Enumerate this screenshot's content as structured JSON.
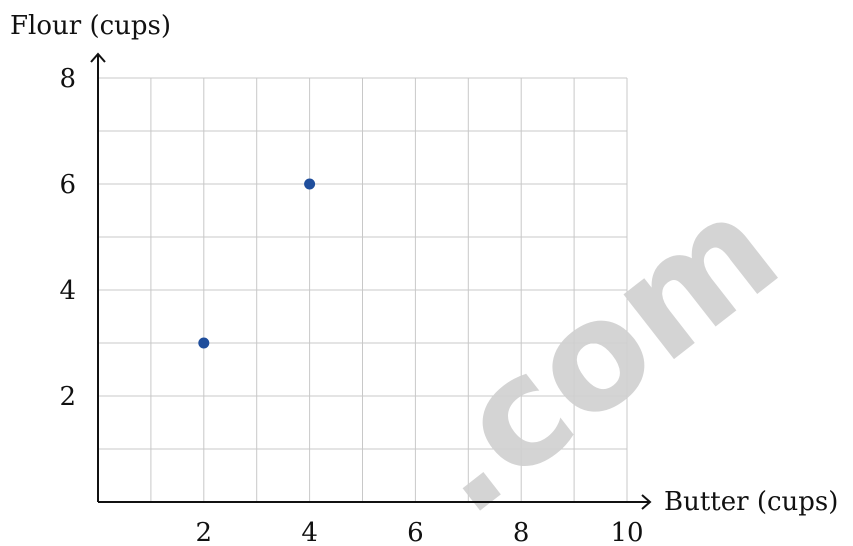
{
  "chart_data": {
    "type": "scatter",
    "xlabel": "Butter (cups)",
    "ylabel": "Flour (cups)",
    "xlim": [
      0,
      10
    ],
    "ylim": [
      0,
      8
    ],
    "x_ticks": [
      2,
      4,
      6,
      8,
      10
    ],
    "y_ticks": [
      2,
      4,
      6,
      8
    ],
    "grid": true,
    "series": [
      {
        "x": [
          2,
          4
        ],
        "y": [
          3,
          6
        ],
        "color": "#1f4e9c"
      }
    ]
  },
  "watermark": ".com",
  "colors": {
    "grid": "#c8c8c8",
    "axis": "#111111",
    "point": "#1f4e9c",
    "watermark": "#cfcfcf"
  }
}
